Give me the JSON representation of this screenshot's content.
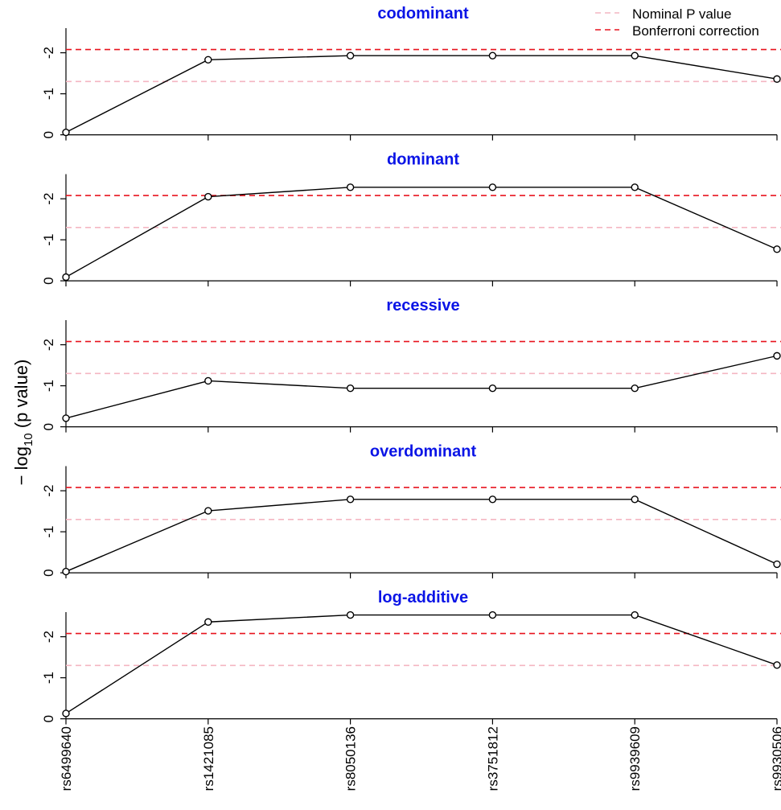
{
  "chart_data": {
    "type": "line",
    "ylabel_prefix": "− log",
    "ylabel_sub": "10",
    "ylabel_suffix": " (p value)",
    "categories": [
      "rs6499640",
      "rs1421085",
      "rs8050136",
      "rs3751812",
      "rs9939609",
      "rs9930506"
    ],
    "y_ticks": [
      0,
      1,
      2
    ],
    "y_tick_labels": [
      "0",
      "-1",
      "-2"
    ],
    "ylim": [
      0,
      2.6
    ],
    "nominal_threshold": 1.3,
    "bonferroni_threshold": 2.08,
    "legend": {
      "position": "top-right",
      "entries": [
        {
          "label": "Nominal P value",
          "color": "#f4b6c2"
        },
        {
          "label": "Bonferroni correction",
          "color": "#e8141e"
        }
      ]
    },
    "colors": {
      "panel_title": "#0a14e6",
      "line": "#000000",
      "nominal": "#f4b6c2",
      "bonferroni": "#e8141e"
    },
    "panels": [
      {
        "title": "codominant",
        "values": [
          0.06,
          1.83,
          1.93,
          1.93,
          1.93,
          1.36
        ]
      },
      {
        "title": "dominant",
        "values": [
          0.09,
          2.05,
          2.28,
          2.28,
          2.28,
          0.77
        ]
      },
      {
        "title": "recessive",
        "values": [
          0.21,
          1.12,
          0.94,
          0.94,
          0.94,
          1.73
        ]
      },
      {
        "title": "overdominant",
        "values": [
          0.03,
          1.51,
          1.79,
          1.79,
          1.79,
          0.21
        ]
      },
      {
        "title": "log-additive",
        "values": [
          0.13,
          2.36,
          2.53,
          2.53,
          2.53,
          1.31
        ]
      }
    ]
  }
}
